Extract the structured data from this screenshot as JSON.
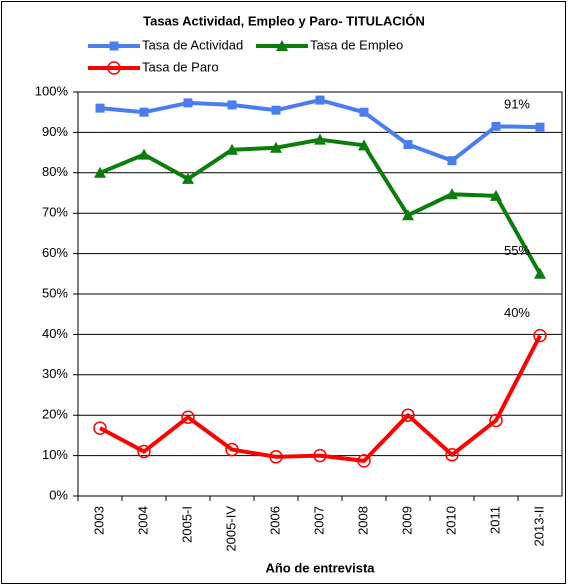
{
  "chart_data": {
    "type": "line",
    "title": "Tasas Actividad, Empleo y Paro- TITULACIÓN",
    "x_label": "Año de entrevista",
    "categories": [
      "2003",
      "2004",
      "2005-I",
      "2005-IV",
      "2006",
      "2007",
      "2008",
      "2009",
      "2010",
      "2011",
      "2013-II"
    ],
    "series": [
      {
        "name": "Tasa de Actividad",
        "color": "#4a7ef0",
        "marker": "square",
        "values": [
          96,
          95,
          97.3,
          96.8,
          95.5,
          98,
          95,
          87,
          83,
          91.5,
          91.3
        ],
        "value_labels": [
          null,
          null,
          null,
          null,
          null,
          null,
          null,
          null,
          null,
          null,
          "91%"
        ]
      },
      {
        "name": "Tasa de Empleo",
        "color": "#0b7d0b",
        "marker": "triangle",
        "values": [
          80,
          84.5,
          78.5,
          85.7,
          86.2,
          88.2,
          86.8,
          69.5,
          74.7,
          74.3,
          55
        ],
        "value_labels": [
          null,
          null,
          null,
          null,
          null,
          null,
          null,
          null,
          null,
          null,
          "55%"
        ]
      },
      {
        "name": "Tasa de Paro",
        "color": "#ff0000",
        "marker": "circle",
        "values": [
          16.8,
          11,
          19.5,
          11.5,
          9.7,
          10,
          8.7,
          20,
          10.2,
          18.7,
          39.7
        ],
        "value_labels": [
          null,
          null,
          null,
          null,
          null,
          null,
          null,
          null,
          null,
          null,
          "40%"
        ]
      }
    ],
    "ylim": [
      0,
      100
    ],
    "yticks": [
      {
        "value": 0,
        "label": "0%"
      },
      {
        "value": 10,
        "label": "10%"
      },
      {
        "value": 20,
        "label": "20%"
      },
      {
        "value": 30,
        "label": "30%"
      },
      {
        "value": 40,
        "label": "40%"
      },
      {
        "value": 50,
        "label": "50%"
      },
      {
        "value": 60,
        "label": "60%"
      },
      {
        "value": 70,
        "label": "70%"
      },
      {
        "value": 80,
        "label": "80%"
      },
      {
        "value": 90,
        "label": "90%"
      },
      {
        "value": 100,
        "label": "100%"
      }
    ],
    "grid": true
  }
}
